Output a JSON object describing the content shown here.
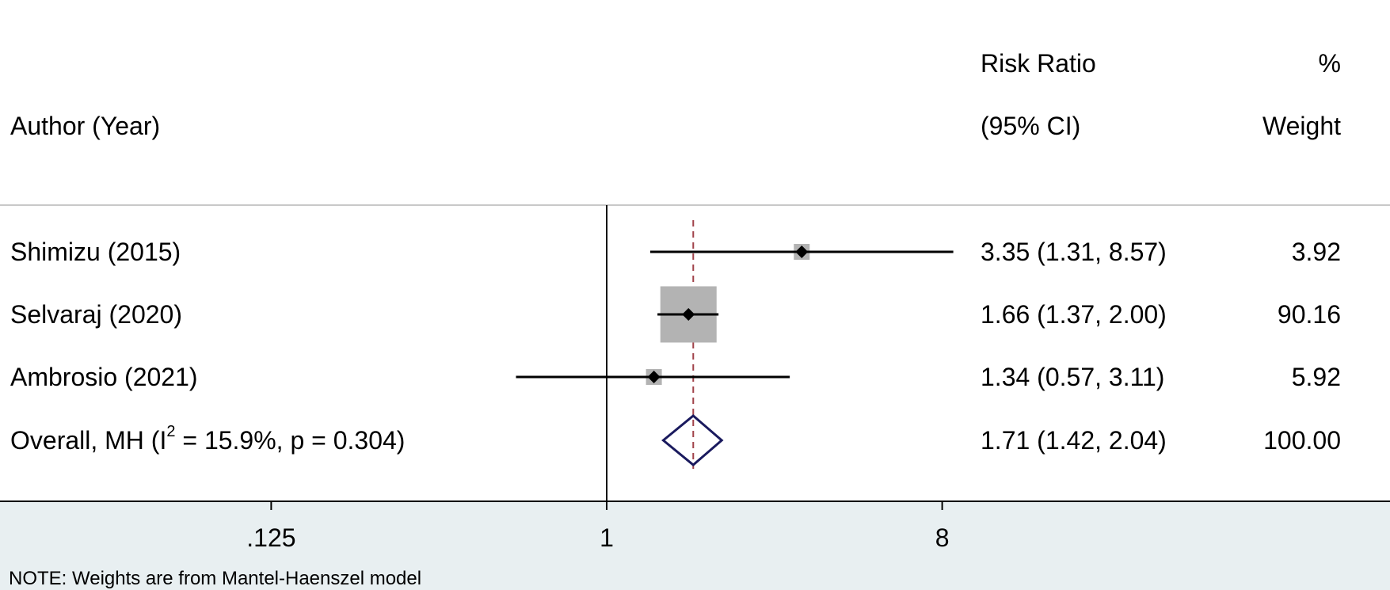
{
  "chart_data": {
    "type": "forest",
    "columns": {
      "study": "Author (Year)",
      "effect_line1": "Risk Ratio",
      "effect_line2": "(95% CI)",
      "weight_line1": "%",
      "weight_line2": "Weight"
    },
    "rows": [
      {
        "label": "Shimizu (2015)",
        "rr": 3.35,
        "lo": 1.31,
        "hi": 8.57,
        "ci_text": "3.35 (1.31, 8.57)",
        "weight": 3.92,
        "weight_text": "3.92"
      },
      {
        "label": "Selvaraj (2020)",
        "rr": 1.66,
        "lo": 1.37,
        "hi": 2.0,
        "ci_text": "1.66 (1.37, 2.00)",
        "weight": 90.16,
        "weight_text": "90.16"
      },
      {
        "label": "Ambrosio (2021)",
        "rr": 1.34,
        "lo": 0.57,
        "hi": 3.11,
        "ci_text": "1.34 (0.57, 3.11)",
        "weight": 5.92,
        "weight_text": "5.92"
      }
    ],
    "overall": {
      "label_pre": "Overall, MH (I",
      "label_sup": "2",
      "label_post": " = 15.9%, p = 0.304)",
      "rr": 1.71,
      "lo": 1.42,
      "hi": 2.04,
      "ci_text": "1.71 (1.42, 2.04)",
      "weight_text": "100.00"
    },
    "x_axis": {
      "scale": "log",
      "null_line": 1,
      "ticks": [
        0.125,
        1,
        8
      ],
      "tick_labels": [
        ".125",
        "1",
        "8"
      ]
    },
    "note": "NOTE: Weights are from Mantel-Haenszel model",
    "colors": {
      "line": "#000000",
      "box": "#b3b3b3",
      "point": "#000000",
      "overall_line": "#a04048",
      "diamond": "#1a1a5e",
      "divider": "#c8c8c8",
      "axis_panel": "#e8eff1"
    }
  }
}
